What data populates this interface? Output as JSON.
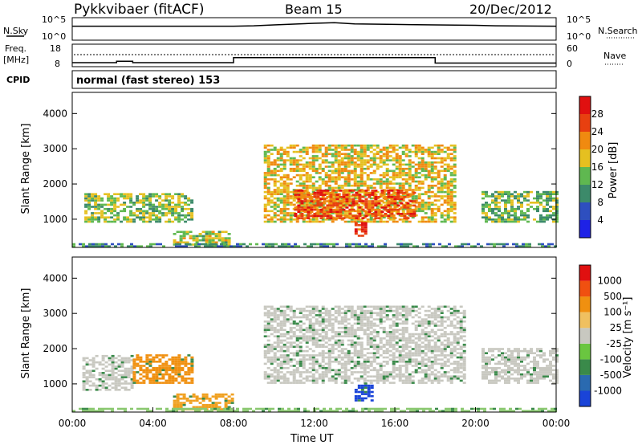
{
  "header": {
    "title": "Pykkvibaer (fitACF)",
    "beam": "Beam 15",
    "date": "20/Dec/2012"
  },
  "panel_labels": {
    "nsky": "N.Sky",
    "nsearch": "N.Search",
    "freq_line1": "Freq.",
    "freq_line2": "[MHz]",
    "nave": "Nave",
    "cpid": "CPID",
    "cpid_value": "normal (fast stereo) 153"
  },
  "chart_data": [
    {
      "type": "line",
      "name": "sky-noise",
      "ylim_labels": [
        "10^0",
        "10^5"
      ],
      "right_labels": [
        "10^0",
        "10^5"
      ],
      "x_hours": [
        0,
        4,
        8,
        9,
        10,
        12,
        13,
        14,
        16,
        18,
        20,
        21,
        24
      ],
      "level": [
        0.62,
        0.62,
        0.62,
        0.64,
        0.68,
        0.75,
        0.78,
        0.72,
        0.7,
        0.68,
        0.66,
        0.64,
        0.62
      ]
    },
    {
      "type": "line",
      "name": "frequency",
      "yticks_left": [
        "8",
        "18"
      ],
      "yticks_right": [
        "0",
        "60"
      ],
      "segments": [
        {
          "x0": 0,
          "x1": 2.2,
          "value": 9.8
        },
        {
          "x0": 2.2,
          "x1": 3.0,
          "value": 10.4
        },
        {
          "x0": 3.0,
          "x1": 8.0,
          "value": 9.8
        },
        {
          "x0": 8.0,
          "x1": 18.0,
          "value": 12.0
        },
        {
          "x0": 18.0,
          "x1": 24.0,
          "value": 9.6
        }
      ],
      "nave_level": 14
    },
    {
      "type": "heatmap",
      "name": "power",
      "ylabel": "Slant Range [km]",
      "yticks": [
        1000,
        2000,
        3000,
        4000
      ],
      "ylim": [
        200,
        4600
      ],
      "colorbar_label": "Power [dB]",
      "colorbar_ticks": [
        "4",
        "8",
        "12",
        "16",
        "20",
        "24",
        "28"
      ],
      "colorbar_colors": [
        "#1e22e6",
        "#2e4fbf",
        "#3c8a6a",
        "#5fb850",
        "#e5c020",
        "#f08a10",
        "#e84010",
        "#e01010"
      ],
      "regions": [
        {
          "x0": 0.6,
          "x1": 6.0,
          "r0": 900,
          "r1": 1700,
          "level": 0.45
        },
        {
          "x0": 5.0,
          "x1": 7.8,
          "r0": 250,
          "r1": 650,
          "level": 0.5
        },
        {
          "x0": 9.5,
          "x1": 19.0,
          "r0": 900,
          "r1": 3100,
          "level": 0.6
        },
        {
          "x0": 11.0,
          "x1": 17.0,
          "r0": 1000,
          "r1": 1800,
          "level": 0.85
        },
        {
          "x0": 14.0,
          "x1": 14.5,
          "r0": 500,
          "r1": 900,
          "level": 0.95
        },
        {
          "x0": 20.3,
          "x1": 24.0,
          "r0": 900,
          "r1": 1800,
          "level": 0.4
        },
        {
          "x0": 0.0,
          "x1": 24.0,
          "r0": 200,
          "r1": 320,
          "level": 0.3
        }
      ]
    },
    {
      "type": "heatmap",
      "name": "velocity",
      "ylabel": "Slant Range [km]",
      "yticks": [
        1000,
        2000,
        3000,
        4000
      ],
      "ylim": [
        200,
        4600
      ],
      "colorbar_label": "Velocity [m s⁻¹]",
      "colorbar_ticks": [
        "1000",
        "500",
        "100",
        "25",
        "-25",
        "-100",
        "-500",
        "-1000"
      ],
      "colorbar_colors": [
        "#1a44d8",
        "#2a6ab0",
        "#3a8a4a",
        "#6ac640",
        "#c8c8c0",
        "#f0c060",
        "#f09010",
        "#f05010",
        "#e01010"
      ],
      "regions": [
        {
          "x0": 0.5,
          "x1": 3.0,
          "r0": 800,
          "r1": 1800,
          "color": "#c8c8c0"
        },
        {
          "x0": 3.0,
          "x1": 6.0,
          "r0": 1000,
          "r1": 1800,
          "color": "#f09010"
        },
        {
          "x0": 5.0,
          "x1": 8.0,
          "r0": 250,
          "r1": 700,
          "color": "#f0a020"
        },
        {
          "x0": 9.5,
          "x1": 19.5,
          "r0": 1000,
          "r1": 3200,
          "color": "#c8c8c0"
        },
        {
          "x0": 14.0,
          "x1": 14.8,
          "r0": 500,
          "r1": 1000,
          "color": "#1a44d8"
        },
        {
          "x0": 20.3,
          "x1": 24.0,
          "r0": 1000,
          "r1": 2000,
          "color": "#c8c8c0"
        },
        {
          "x0": 0.0,
          "x1": 24.0,
          "r0": 200,
          "r1": 320,
          "color": "#8ac870"
        }
      ]
    }
  ],
  "xaxis": {
    "label": "Time UT",
    "ticks": [
      "00:00",
      "04:00",
      "08:00",
      "12:00",
      "16:00",
      "20:00",
      "00:00"
    ]
  }
}
